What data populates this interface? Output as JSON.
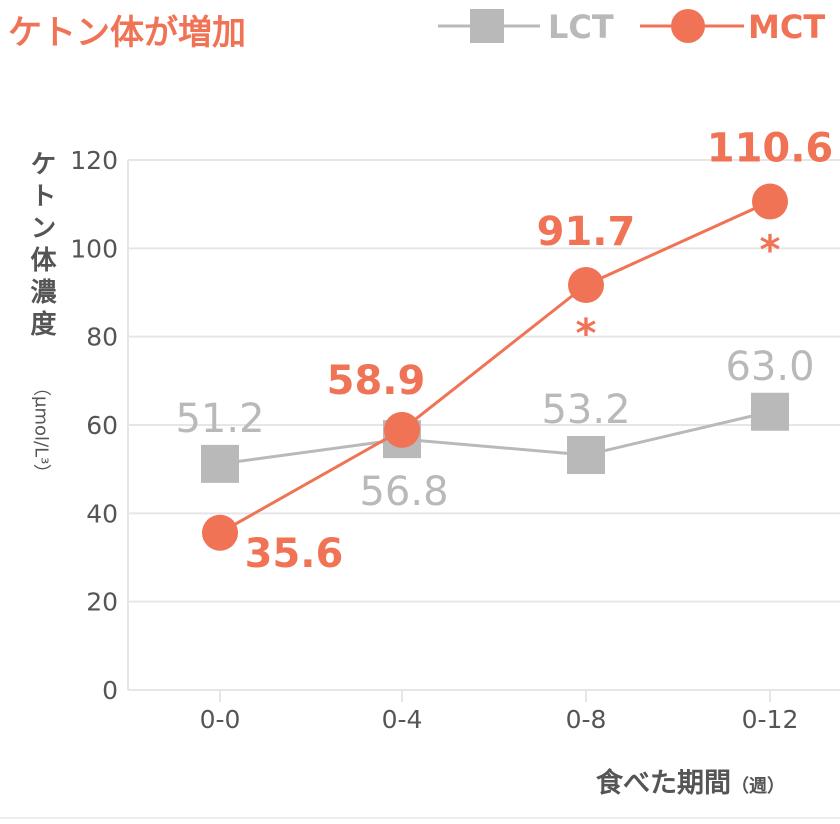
{
  "title": "ケトン体が増加",
  "legend": {
    "lct": "LCT",
    "mct": "MCT"
  },
  "colors": {
    "lct": "#b9b9b9",
    "mct": "#f07356"
  },
  "chart_data": {
    "type": "line",
    "title": "ケトン体が増加",
    "categories": [
      "0-0",
      "0-4",
      "0-8",
      "0-12"
    ],
    "series": [
      {
        "name": "LCT",
        "values": [
          51.2,
          56.8,
          53.2,
          63.0
        ],
        "labels": [
          "51.2",
          "56.8",
          "53.2",
          "63.0"
        ],
        "marker": "square"
      },
      {
        "name": "MCT",
        "values": [
          35.6,
          58.9,
          91.7,
          110.6
        ],
        "labels": [
          "35.6",
          "58.9",
          "91.7",
          "110.6"
        ],
        "marker": "circle"
      }
    ],
    "ylabel": "ケトン体濃度",
    "ylabel_unit": "（μmol/L³）",
    "xlabel": "食べた期間",
    "xlabel_unit": "（週）",
    "yticks": [
      "0",
      "20",
      "40",
      "60",
      "80",
      "100",
      "120"
    ],
    "ylim": [
      0,
      120
    ],
    "significance": {
      "symbol": "*",
      "categories": [
        "0-8",
        "0-12"
      ]
    },
    "grid": true,
    "legend_position": "top-right"
  }
}
